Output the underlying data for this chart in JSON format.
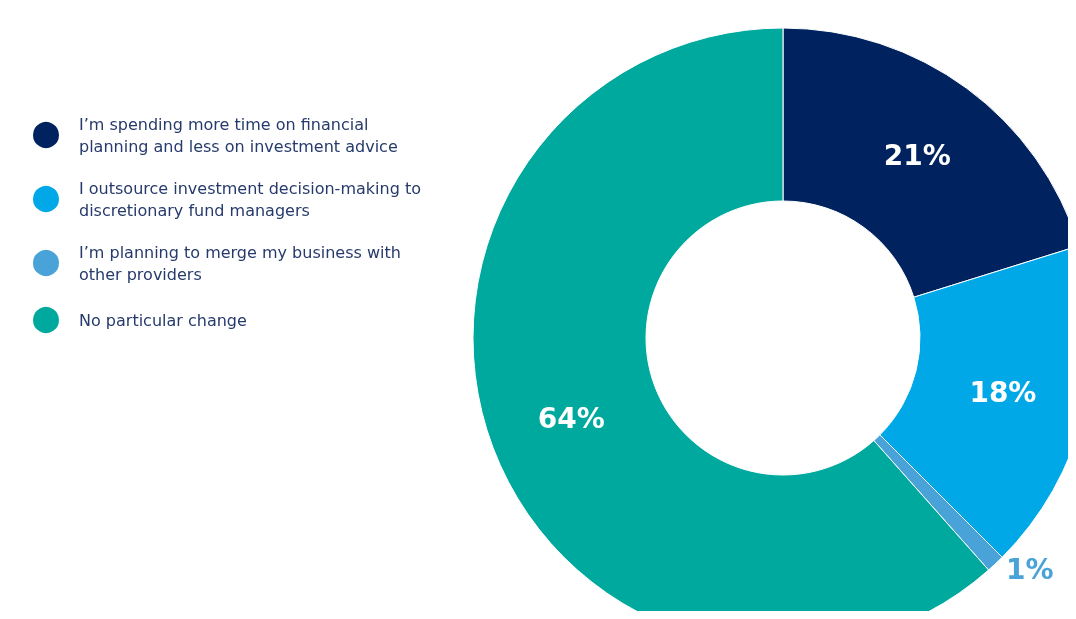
{
  "chart_data": {
    "type": "donut",
    "categories": [
      "I’m spending more time on financial planning and less on investment advice",
      "I outsource investment decision-making to discretionary fund managers",
      "I’m planning to merge my business with other providers",
      "No particular change"
    ],
    "values": [
      21,
      18,
      1,
      64
    ],
    "value_labels": [
      "21%",
      "18%",
      "1%",
      "64%"
    ],
    "colors": [
      "#00235f",
      "#00a8e8",
      "#4aa3d8",
      "#00a99d"
    ],
    "legend": "top left"
  }
}
